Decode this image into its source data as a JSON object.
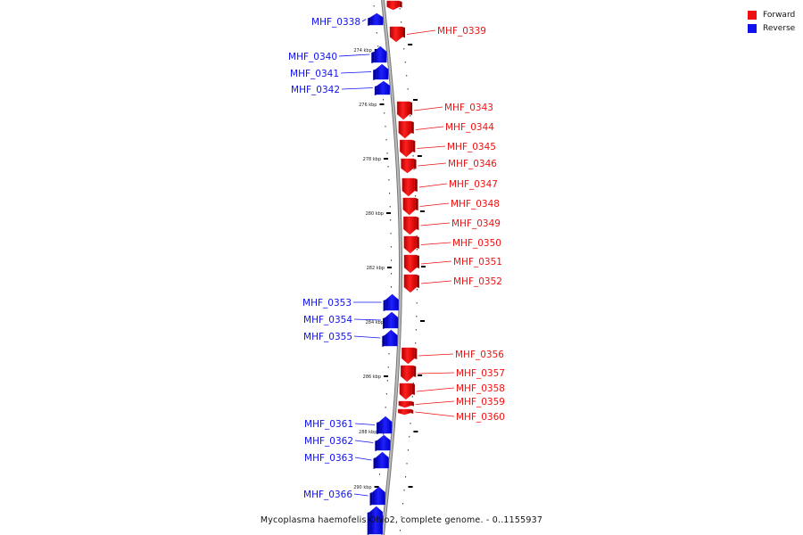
{
  "legend": {
    "forward": {
      "label": "Forward",
      "color": "#ee1111"
    },
    "reverse": {
      "label": "Reverse",
      "color": "#1111ee"
    }
  },
  "caption": "Mycoplasma haemofelis Ohio2, complete genome. - 0..1155937",
  "axis": {
    "unit": "kbp",
    "ticks": [
      "274 kbp",
      "276 kbp",
      "278 kbp",
      "280 kbp",
      "282 kbp",
      "284 kbp",
      "286 kbp",
      "288 kbp",
      "290 kbp"
    ]
  },
  "genes": [
    {
      "name": "",
      "strand": "forward"
    },
    {
      "name": "MHF_0338",
      "strand": "reverse"
    },
    {
      "name": "MHF_0339",
      "strand": "forward"
    },
    {
      "name": "MHF_0340",
      "strand": "reverse"
    },
    {
      "name": "MHF_0341",
      "strand": "reverse"
    },
    {
      "name": "MHF_0342",
      "strand": "reverse"
    },
    {
      "name": "MHF_0343",
      "strand": "forward"
    },
    {
      "name": "MHF_0344",
      "strand": "forward"
    },
    {
      "name": "MHF_0345",
      "strand": "forward"
    },
    {
      "name": "MHF_0346",
      "strand": "forward"
    },
    {
      "name": "MHF_0347",
      "strand": "forward"
    },
    {
      "name": "MHF_0348",
      "strand": "forward"
    },
    {
      "name": "MHF_0349",
      "strand": "forward"
    },
    {
      "name": "MHF_0350",
      "strand": "forward"
    },
    {
      "name": "MHF_0351",
      "strand": "forward"
    },
    {
      "name": "MHF_0352",
      "strand": "forward"
    },
    {
      "name": "MHF_0353",
      "strand": "reverse"
    },
    {
      "name": "MHF_0354",
      "strand": "reverse"
    },
    {
      "name": "MHF_0355",
      "strand": "reverse"
    },
    {
      "name": "MHF_0356",
      "strand": "forward"
    },
    {
      "name": "MHF_0357",
      "strand": "forward"
    },
    {
      "name": "MHF_0358",
      "strand": "forward"
    },
    {
      "name": "MHF_0359",
      "strand": "forward"
    },
    {
      "name": "MHF_0360",
      "strand": "forward"
    },
    {
      "name": "MHF_0361",
      "strand": "reverse"
    },
    {
      "name": "MHF_0362",
      "strand": "reverse"
    },
    {
      "name": "MHF_0363",
      "strand": "reverse"
    },
    {
      "name": "MHF_0366",
      "strand": "reverse"
    },
    {
      "name": "",
      "strand": "reverse"
    }
  ]
}
